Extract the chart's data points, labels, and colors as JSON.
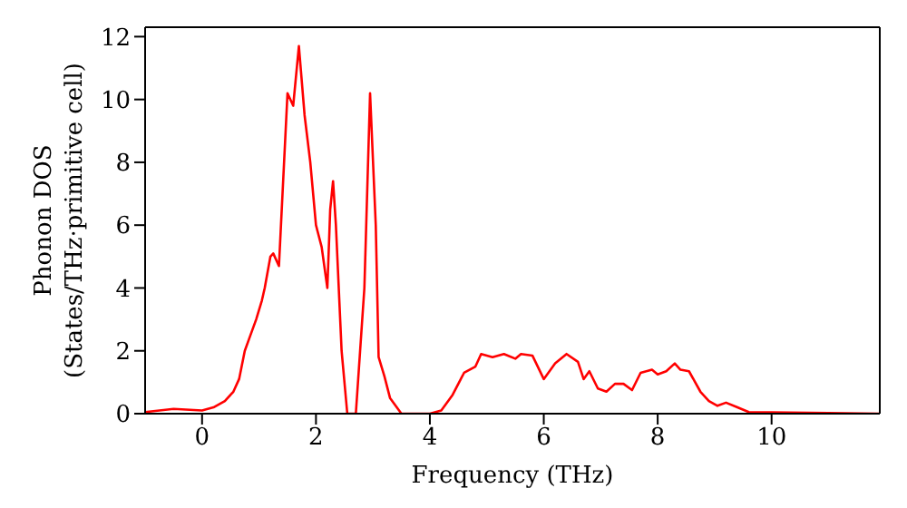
{
  "chart_data": {
    "type": "line",
    "xlabel": "Frequency (THz)",
    "ylabel": "Phonon DOS\n(States/THz·primitive cell)",
    "x": [
      -1,
      -0.5,
      0,
      0.2,
      0.4,
      0.55,
      0.65,
      0.75,
      0.85,
      0.95,
      1.05,
      1.1,
      1.2,
      1.25,
      1.35,
      1.5,
      1.6,
      1.7,
      1.8,
      1.9,
      2.0,
      2.1,
      2.2,
      2.25,
      2.3,
      2.35,
      2.45,
      2.55,
      2.7,
      2.85,
      2.95,
      3.05,
      3.1,
      3.2,
      3.3,
      3.5,
      4.0,
      4.2,
      4.4,
      4.6,
      4.8,
      4.9,
      5.1,
      5.3,
      5.5,
      5.6,
      5.8,
      6.0,
      6.2,
      6.4,
      6.6,
      6.7,
      6.8,
      6.95,
      7.1,
      7.25,
      7.4,
      7.55,
      7.7,
      7.9,
      8.0,
      8.15,
      8.3,
      8.4,
      8.55,
      8.75,
      8.9,
      9.05,
      9.2,
      9.4,
      9.6,
      10,
      11,
      11.9
    ],
    "series": [
      {
        "color": "#ff0000",
        "values": [
          0.05,
          0.15,
          0.1,
          0.2,
          0.4,
          0.7,
          1.1,
          2.0,
          2.5,
          3.0,
          3.6,
          4.0,
          5.0,
          5.1,
          4.7,
          10.2,
          9.8,
          11.7,
          9.5,
          8.0,
          6.0,
          5.3,
          4.0,
          6.5,
          7.4,
          6.0,
          2.0,
          0,
          0,
          4.0,
          10.2,
          6.0,
          1.8,
          1.2,
          0.5,
          0,
          0,
          0.1,
          0.6,
          1.3,
          1.5,
          1.9,
          1.8,
          1.9,
          1.75,
          1.9,
          1.85,
          1.1,
          1.6,
          1.9,
          1.65,
          1.1,
          1.35,
          0.8,
          0.7,
          0.95,
          0.95,
          0.75,
          1.3,
          1.4,
          1.25,
          1.35,
          1.6,
          1.4,
          1.35,
          0.7,
          0.4,
          0.25,
          0.35,
          0.2,
          0.05,
          0.04,
          0.02,
          0
        ]
      }
    ],
    "xlim": [
      -1,
      11.9
    ],
    "ylim": [
      0,
      12.3
    ],
    "xticks": [
      0,
      2,
      4,
      6,
      8,
      10
    ],
    "yticks": [
      0,
      2,
      4,
      6,
      8,
      10,
      12
    ],
    "grid": false,
    "legend": false,
    "marker": "none",
    "line_style": "solid"
  }
}
